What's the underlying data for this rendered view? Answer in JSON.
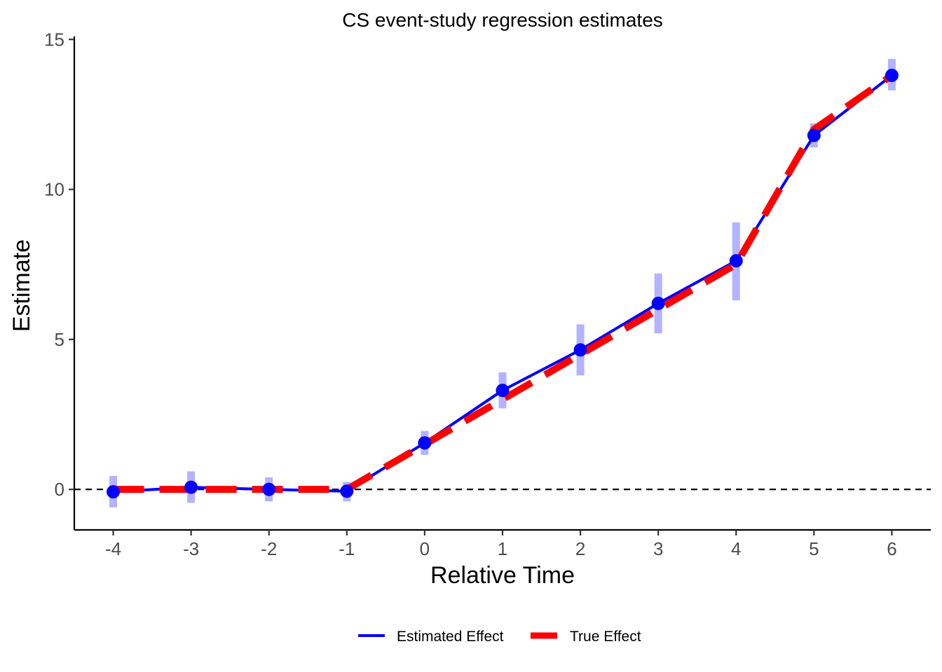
{
  "chart_data": {
    "type": "line",
    "title": "CS event-study regression estimates",
    "xlabel": "Relative Time",
    "ylabel": "Estimate",
    "x": [
      -4,
      -3,
      -2,
      -1,
      0,
      1,
      2,
      3,
      4,
      5,
      6
    ],
    "x_tick_labels": [
      "-4",
      "-3",
      "-2",
      "-1",
      "0",
      "1",
      "2",
      "3",
      "4",
      "5",
      "6"
    ],
    "y_ticks": [
      0,
      5,
      10,
      15
    ],
    "y_tick_labels": [
      "0",
      "5",
      "10",
      "15"
    ],
    "xlim": [
      -4.5,
      6.5
    ],
    "ylim": [
      -1.35,
      15.1
    ],
    "reference_line_y": 0,
    "grid": false,
    "legend_position": "bottom",
    "series": [
      {
        "name": "Estimated Effect",
        "color": "#0000FF",
        "style": "solid",
        "markers": true,
        "values": [
          -0.08,
          0.07,
          0.0,
          -0.06,
          1.55,
          3.3,
          4.65,
          6.2,
          7.62,
          11.8,
          13.8
        ],
        "ci_lower": [
          -0.6,
          -0.45,
          -0.4,
          -0.4,
          1.15,
          2.7,
          3.8,
          5.2,
          6.3,
          11.4,
          13.3
        ],
        "ci_upper": [
          0.45,
          0.6,
          0.4,
          0.25,
          1.95,
          3.9,
          5.5,
          7.2,
          8.9,
          12.2,
          14.35
        ],
        "ci_color": "#B3B3FF"
      },
      {
        "name": "True Effect",
        "color": "#FF0000",
        "style": "dashed",
        "markers": false,
        "values": [
          0,
          0,
          0,
          0,
          1.5,
          3.0,
          4.5,
          6.0,
          7.5,
          12.0,
          13.8
        ]
      }
    ]
  }
}
